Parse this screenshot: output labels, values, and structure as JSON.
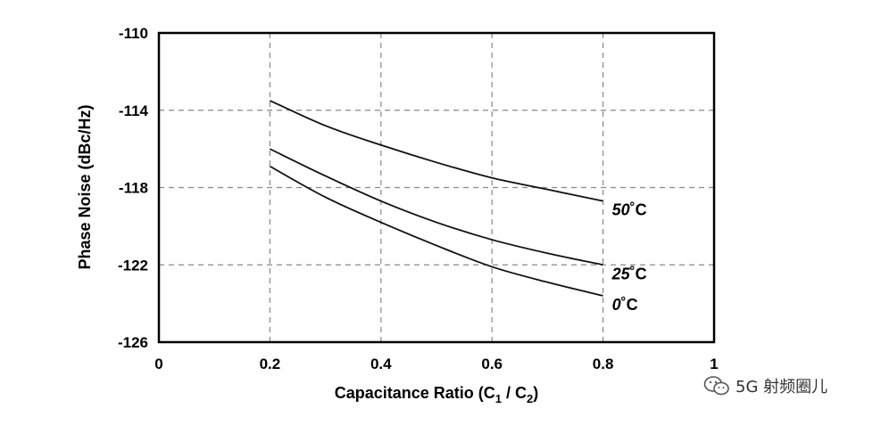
{
  "chart_data": {
    "type": "line",
    "xlabel": "Capacitance Ratio (C",
    "xlabel_sub1": "1",
    "xlabel_mid": " / C",
    "xlabel_sub2": "2",
    "xlabel_end": ")",
    "ylabel": "Phase Noise (dBc/Hz)",
    "xlim": [
      0,
      1
    ],
    "ylim": [
      -126,
      -110
    ],
    "x_ticks": [
      0,
      0.2,
      0.4,
      0.6,
      0.8,
      1
    ],
    "x_tick_labels": [
      "0",
      "0.2",
      "0.4",
      "0.6",
      "0.8",
      "1"
    ],
    "y_ticks": [
      -110,
      -114,
      -118,
      -122,
      -126
    ],
    "y_tick_labels": [
      "-110",
      "-114",
      "-118",
      "-122",
      "-126"
    ],
    "grid": true,
    "series": [
      {
        "name": "50",
        "unit": "˚C",
        "x": [
          0.2,
          0.3,
          0.4,
          0.5,
          0.6,
          0.7,
          0.8
        ],
        "y": [
          -113.5,
          -114.8,
          -115.8,
          -116.7,
          -117.5,
          -118.1,
          -118.7
        ]
      },
      {
        "name": "25",
        "unit": "˚C",
        "x": [
          0.2,
          0.3,
          0.4,
          0.5,
          0.6,
          0.7,
          0.8
        ],
        "y": [
          -116.0,
          -117.4,
          -118.7,
          -119.8,
          -120.7,
          -121.4,
          -122.0
        ]
      },
      {
        "name": "0",
        "unit": "˚C",
        "x": [
          0.2,
          0.3,
          0.4,
          0.5,
          0.6,
          0.7,
          0.8
        ],
        "y": [
          -116.9,
          -118.5,
          -119.8,
          -121.0,
          -122.1,
          -122.9,
          -123.6
        ]
      }
    ]
  },
  "watermark": {
    "text": "5G 射频圈儿",
    "icon": "wechat-icon"
  }
}
